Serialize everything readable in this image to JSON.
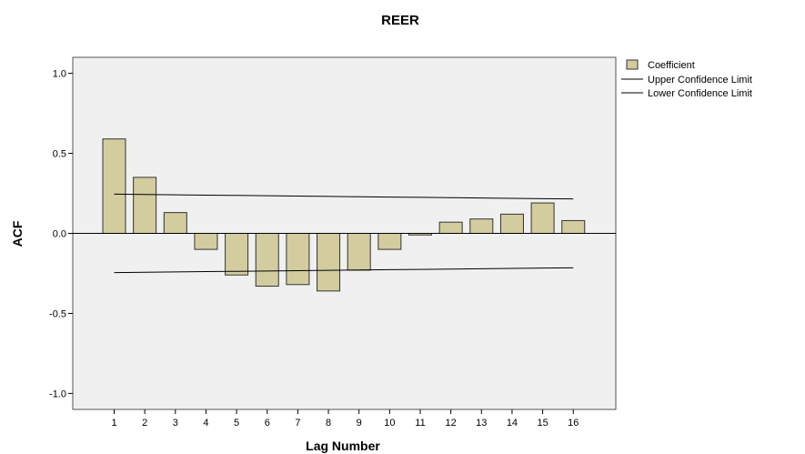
{
  "chart_data": {
    "type": "bar",
    "title": "REER",
    "xlabel": "Lag Number",
    "ylabel": "ACF",
    "categories": [
      "1",
      "2",
      "3",
      "4",
      "5",
      "6",
      "7",
      "8",
      "9",
      "10",
      "11",
      "12",
      "13",
      "14",
      "15",
      "16"
    ],
    "series": [
      {
        "name": "Coefficient",
        "values": [
          0.59,
          0.35,
          0.13,
          -0.1,
          -0.26,
          -0.33,
          -0.32,
          -0.36,
          -0.23,
          -0.1,
          -0.01,
          0.07,
          0.09,
          0.12,
          0.19,
          0.08
        ]
      }
    ],
    "upper_confidence_limit": [
      0.245,
      0.243,
      0.241,
      0.239,
      0.237,
      0.235,
      0.233,
      0.231,
      0.229,
      0.227,
      0.225,
      0.223,
      0.221,
      0.219,
      0.217,
      0.215
    ],
    "lower_confidence_limit": [
      -0.245,
      -0.243,
      -0.241,
      -0.239,
      -0.237,
      -0.235,
      -0.233,
      -0.231,
      -0.229,
      -0.227,
      -0.225,
      -0.223,
      -0.221,
      -0.219,
      -0.217,
      -0.215
    ],
    "ylim": [
      -1.1,
      1.1
    ],
    "yticks": [
      "1.0",
      "0.5",
      "0.0",
      "-0.5",
      "-1.0"
    ],
    "ytick_values": [
      1.0,
      0.5,
      0.0,
      -0.5,
      -1.0
    ],
    "legend": {
      "position": "top-right",
      "entries": [
        "Coefficient",
        "Upper Confidence Limit",
        "Lower Confidence Limit"
      ]
    },
    "colors": {
      "bar_fill": "#d3cc9f",
      "bar_stroke": "#333333",
      "plot_bg": "#f0f0f0",
      "line": "#000000"
    },
    "grid": false
  }
}
